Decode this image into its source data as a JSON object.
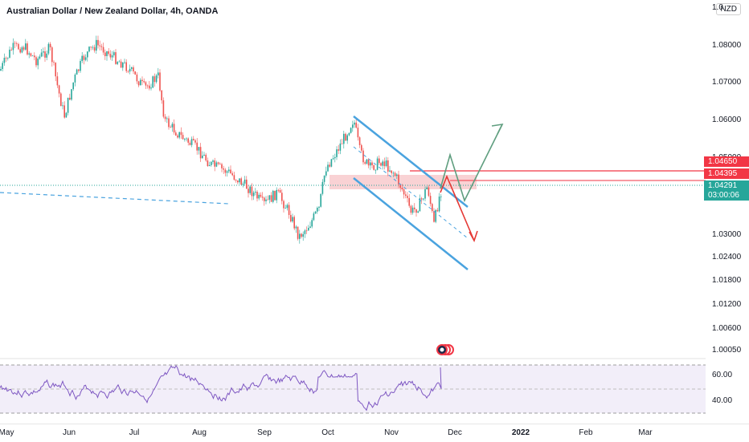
{
  "header": {
    "title": "Australian Dollar / New Zealand Dollar, 4h, OANDA",
    "currency": "NZD"
  },
  "price_axis": {
    "ticks": [
      "1.08000",
      "1.07000",
      "1.06000",
      "1.05000",
      "1.03000",
      "1.02400",
      "1.01800",
      "1.01200",
      "1.00600",
      "1.00050"
    ],
    "top_partial": "1.0",
    "labels": {
      "upper": {
        "text": "1.04650",
        "color": "#f23645"
      },
      "lower": {
        "text": "1.04395",
        "color": "#f23645"
      },
      "current": {
        "text": "1.04291",
        "color": "#26a69a"
      },
      "countdown": {
        "text": "03:00:06",
        "color": "#26a69a"
      }
    }
  },
  "rsi_axis": {
    "ticks": [
      "60.00",
      "40.00"
    ]
  },
  "time_axis": {
    "labels": [
      {
        "text": "May",
        "bold": false
      },
      {
        "text": "Jun",
        "bold": false
      },
      {
        "text": "Jul",
        "bold": false
      },
      {
        "text": "Aug",
        "bold": false
      },
      {
        "text": "Sep",
        "bold": false
      },
      {
        "text": "Oct",
        "bold": false
      },
      {
        "text": "Nov",
        "bold": false
      },
      {
        "text": "Dec",
        "bold": false
      },
      {
        "text": "2022",
        "bold": true
      },
      {
        "text": "Feb",
        "bold": false
      },
      {
        "text": "Mar",
        "bold": false
      }
    ]
  },
  "colors": {
    "up": "#26a69a",
    "down": "#ef5350",
    "channel": "#4aa3df",
    "rsi": "#7e57c2",
    "rsi_band": "#ede7f6",
    "resistance": "#f23645",
    "green_path": "#5f9e7f",
    "red_path": "#e53935"
  },
  "icons": {
    "chart_marker": "tradingview-marker-icon"
  }
}
